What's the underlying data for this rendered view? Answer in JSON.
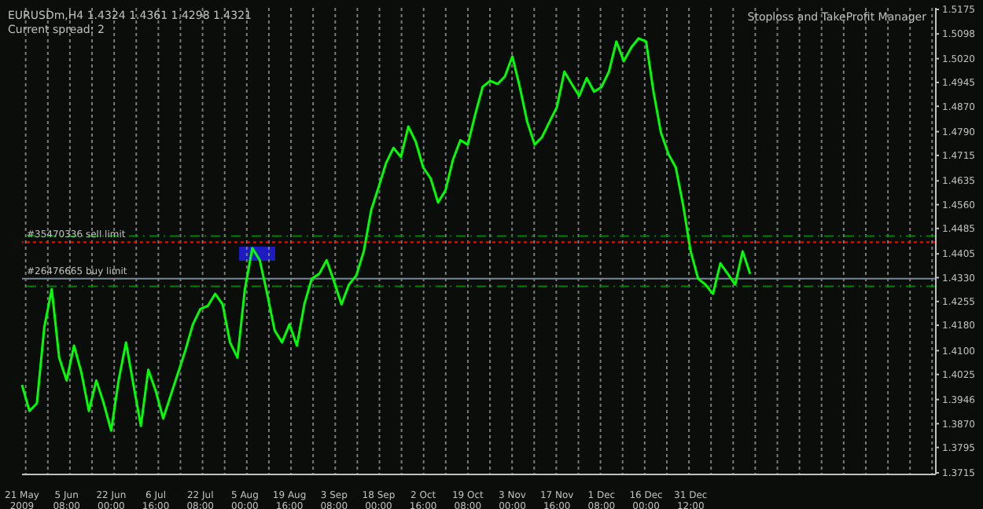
{
  "chart_data": {
    "type": "line",
    "title": "EURUSDm,H4  1.4324 1.4361 1.4298 1.4321",
    "subtitle": "Current spread: 2",
    "annotations": [
      "Stoploss and TakeProfit Manager"
    ],
    "categories": [
      "21 May 2009",
      null,
      null,
      null,
      null,
      null,
      "5 Jun 08:00",
      null,
      null,
      null,
      null,
      null,
      "22 Jun 00:00",
      null,
      null,
      null,
      null,
      null,
      "6 Jul 16:00",
      null,
      null,
      null,
      null,
      null,
      "22 Jul 08:00",
      null,
      null,
      null,
      null,
      null,
      "5 Aug 00:00",
      null,
      null,
      null,
      null,
      null,
      "19 Aug 16:00",
      null,
      null,
      null,
      null,
      null,
      "3 Sep 08:00",
      null,
      null,
      null,
      null,
      null,
      "18 Sep 00:00",
      null,
      null,
      null,
      null,
      null,
      "2 Oct 16:00",
      null,
      null,
      null,
      null,
      null,
      "19 Oct 08:00",
      null,
      null,
      null,
      null,
      null,
      "3 Nov 00:00",
      null,
      null,
      null,
      null,
      null,
      "17 Nov 16:00",
      null,
      null,
      null,
      null,
      null,
      "1 Dec 08:00",
      null,
      null,
      null,
      null,
      null,
      "16 Dec 00:00",
      null,
      null,
      null,
      null,
      null,
      "31 Dec 12:00",
      null,
      null,
      null,
      null,
      null,
      null,
      null,
      null,
      null,
      null,
      null,
      null,
      null,
      null,
      null,
      null,
      null,
      null,
      null,
      null,
      null,
      null,
      null,
      null,
      null,
      null,
      null,
      null,
      null,
      null,
      null,
      null,
      null
    ],
    "series": [
      {
        "color": "#00ff00",
        "values": [
          1.3992,
          1.391,
          1.3934,
          1.4174,
          1.4294,
          1.4078,
          1.4006,
          1.4116,
          1.403,
          1.391,
          1.4006,
          1.3934,
          1.3848,
          1.4006,
          1.4126,
          1.3992,
          1.3863,
          1.404,
          1.3973,
          1.3886,
          1.3958,
          1.403,
          1.4102,
          1.4183,
          1.4231,
          1.4241,
          1.4279,
          1.4246,
          1.4126,
          1.4078,
          1.4294,
          1.4423,
          1.4385,
          1.4279,
          1.4164,
          1.4126,
          1.4183,
          1.4116,
          1.4246,
          1.4327,
          1.4342,
          1.4385,
          1.4318,
          1.4246,
          1.4308,
          1.4337,
          1.4413,
          1.4543,
          1.4615,
          1.4691,
          1.4739,
          1.471,
          1.4806,
          1.4758,
          1.4677,
          1.4643,
          1.4567,
          1.4605,
          1.4701,
          1.4763,
          1.4749,
          1.4844,
          1.4931,
          1.495,
          1.494,
          1.4964,
          1.5027,
          1.4931,
          1.4821,
          1.4749,
          1.4773,
          1.4821,
          1.4868,
          1.4979,
          1.494,
          1.4902,
          1.4959,
          1.4916,
          1.4931,
          1.4979,
          1.5074,
          1.5012,
          1.5055,
          1.5084,
          1.5074,
          1.4916,
          1.4787,
          1.472,
          1.4677,
          1.4557,
          1.4413,
          1.4327,
          1.4308,
          1.4279,
          1.4375,
          1.4342,
          1.4308,
          1.4413,
          1.4342,
          null,
          null,
          null,
          null,
          null,
          null,
          null,
          null,
          null,
          null,
          null,
          null,
          null,
          null,
          null,
          null,
          null,
          null,
          null,
          null,
          null,
          null,
          null,
          null,
          null
        ]
      }
    ],
    "ylim": [
      1.371,
      1.518
    ],
    "yticks": [
      1.3715,
      1.3795,
      {
        "value": 1.387,
        "label": "1.3870"
      },
      1.3946,
      1.4025,
      {
        "value": 1.41,
        "label": "1.4100"
      },
      {
        "value": 1.418,
        "label": "1.4180"
      },
      1.4255,
      {
        "value": 1.433,
        "label": "1.4330"
      },
      1.4405,
      1.4485,
      {
        "value": 1.456,
        "label": "1.4560"
      },
      1.4635,
      1.4715,
      {
        "value": 1.479,
        "label": "1.4790"
      },
      {
        "value": 1.487,
        "label": "1.4870"
      },
      1.4945,
      {
        "value": 1.502,
        "label": "1.5020"
      },
      1.5098,
      1.5175
    ],
    "ref_lines": [
      {
        "axis": "y",
        "value": 1.4442,
        "label": "#35470336 sell limit",
        "color": "#ff0000",
        "line_style": "dotted"
      },
      {
        "axis": "y",
        "value": 1.4327,
        "label": "#26476665 buy limit",
        "color": "#778899",
        "line_style": "solid"
      },
      {
        "axis": "y",
        "value": 1.4461,
        "label": null,
        "color": "#008000",
        "line_style": "dashed"
      },
      {
        "axis": "y",
        "value": 1.4303,
        "label": null,
        "color": "#008000",
        "line_style": "dashed"
      }
    ],
    "grid": "x",
    "marker": "none",
    "line_style": "solid"
  }
}
